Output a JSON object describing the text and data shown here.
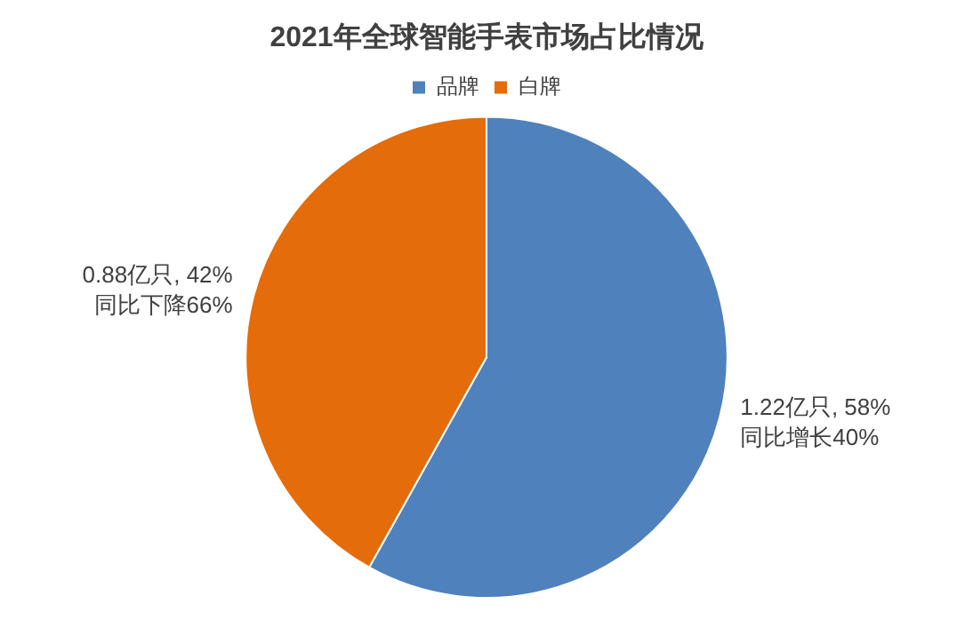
{
  "chart_data": {
    "type": "pie",
    "title": "2021年全球智能手表市场占比情况",
    "categories": [
      "品牌",
      "白牌"
    ],
    "values": [
      1.22,
      0.88
    ],
    "colors": [
      "#4f81bd",
      "#e46c0a"
    ],
    "value_labels": [
      "1.22亿只, 58%\n同比增长40%",
      "0.88亿只, 42%\n同比下降66%"
    ],
    "legend": "top"
  }
}
